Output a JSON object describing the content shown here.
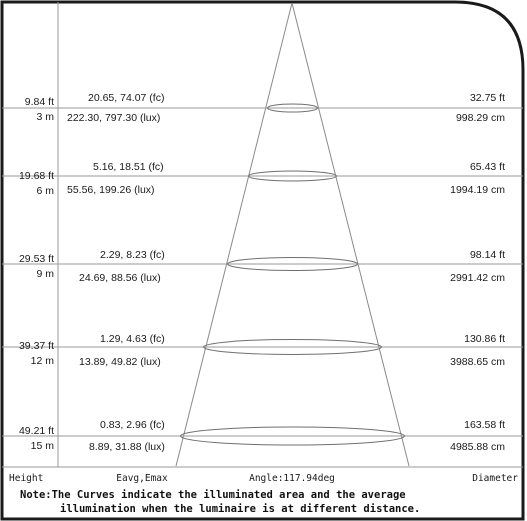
{
  "colors": {
    "frame": "#1a1a1a",
    "line": "#9a9a9a",
    "text": "#1a1a1a",
    "background": "#ffffff"
  },
  "rows": [
    {
      "height_ft": "9.84 ft",
      "height_m": "3 m",
      "fc": "20.65, 74.07 (fc)",
      "lux": "222.30, 797.30 (lux)",
      "diameter_ft": "32.75 ft",
      "diameter_cm": "998.29 cm"
    },
    {
      "height_ft": "19.68 ft",
      "height_m": "6 m",
      "fc": "5.16, 18.51 (fc)",
      "lux": "55.56, 199.26 (lux)",
      "diameter_ft": "65.43 ft",
      "diameter_cm": "1994.19 cm"
    },
    {
      "height_ft": "29.53 ft",
      "height_m": "9 m",
      "fc": "2.29, 8.23 (fc)",
      "lux": "24.69, 88.56 (lux)",
      "diameter_ft": "98.14 ft",
      "diameter_cm": "2991.42 cm"
    },
    {
      "height_ft": "39.37 ft",
      "height_m": "12 m",
      "fc": "1.29, 4.63 (fc)",
      "lux": "13.89, 49.82 (lux)",
      "diameter_ft": "130.86 ft",
      "diameter_cm": "3988.65 cm"
    },
    {
      "height_ft": "49.21 ft",
      "height_m": "15 m",
      "fc": "0.83, 2.96 (fc)",
      "lux": "8.89, 31.88 (lux)",
      "diameter_ft": "163.58 ft",
      "diameter_cm": "4985.88 cm"
    }
  ],
  "footer": {
    "height_label": "Height",
    "eavg_label": "Eavg,Emax",
    "angle_label": "Angle:117.94deg",
    "diameter_label": "Diameter"
  },
  "note": {
    "line1": "Note:The Curves indicate the illuminated area and the average",
    "line2": "illumination when the luminaire is at different distance."
  }
}
